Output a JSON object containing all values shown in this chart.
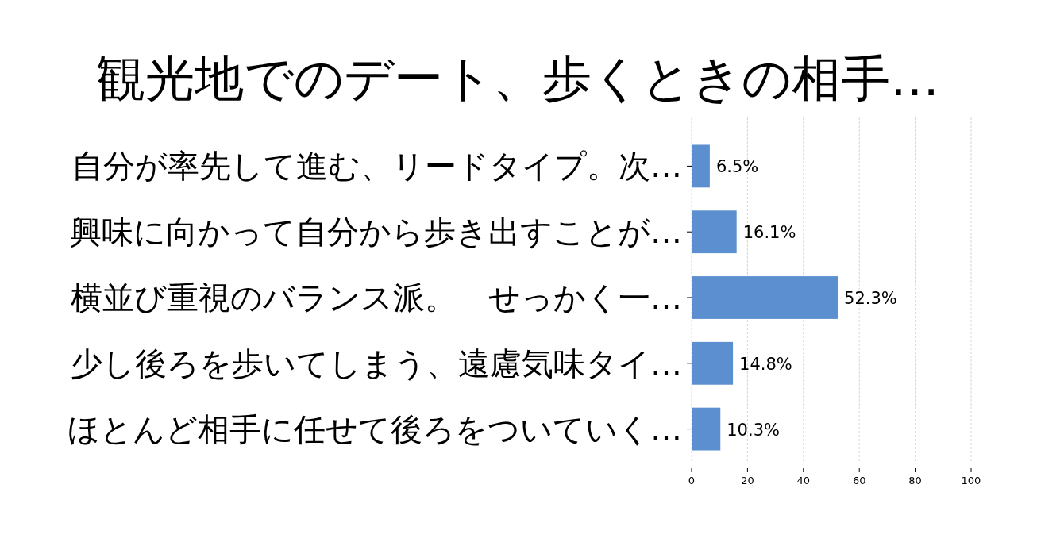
{
  "chart_data": {
    "type": "bar",
    "orientation": "horizontal",
    "title": "観光地でのデート、歩くときの相手…",
    "categories": [
      "自分が率先して進む、リードタイプ。次…",
      "興味に向かって自分から歩き出すことが…",
      "横並び重視のバランス派。　せっかく一…",
      "少し後ろを歩いてしまう、遠慮気味タイ…",
      "ほとんど相手に任せて後ろをついていく…"
    ],
    "values": [
      6.5,
      16.1,
      52.3,
      14.8,
      10.3
    ],
    "value_labels": [
      "6.5%",
      "16.1%",
      "52.3%",
      "14.8%",
      "10.3%"
    ],
    "color": "#5b8fcf",
    "xlim": [
      0,
      100
    ],
    "xticks": [
      0,
      20,
      40,
      60,
      80,
      100
    ],
    "grid": "x"
  }
}
